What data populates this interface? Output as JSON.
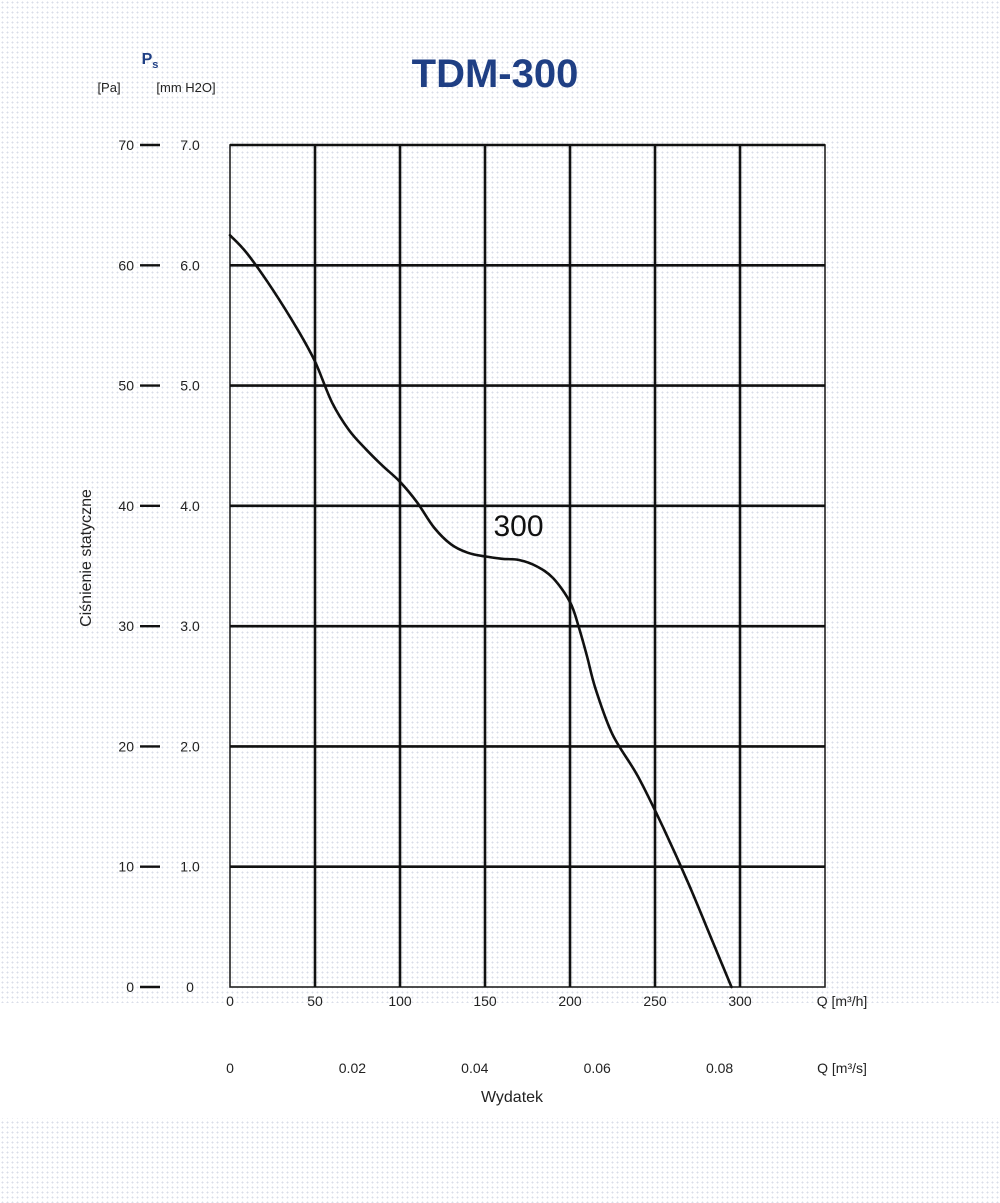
{
  "chart_data": {
    "type": "line",
    "title": "TDM-300",
    "ylabel": "Ciśnienie statyczne",
    "ylabel_symbol": "P",
    "ylabel_subscript": "s",
    "y_unit_pa": "[Pa]",
    "y_unit_mmh2o": "[mm H2O]",
    "xlabel": "Wydatek",
    "x_unit_m3h": "Q [m³/h]",
    "x_unit_m3s": "Q [m³/s]",
    "xlim": [
      0,
      350
    ],
    "ylim": [
      0,
      70
    ],
    "grid": true,
    "x_ticks": [
      0,
      50,
      100,
      150,
      200,
      250,
      300
    ],
    "x_tick_labels": [
      "0",
      "50",
      "100",
      "150",
      "200",
      "250",
      "300"
    ],
    "x2_ticks_m3h": [
      0,
      72,
      144,
      216,
      288
    ],
    "x2_tick_labels": [
      "0",
      "0.02",
      "0.04",
      "0.06",
      "0.08"
    ],
    "y_ticks_pa": [
      0,
      10,
      20,
      30,
      40,
      50,
      60,
      70
    ],
    "y_tick_labels_pa": [
      "0",
      "10",
      "20",
      "30",
      "40",
      "50",
      "60",
      "70"
    ],
    "y_ticks_mm": [
      0,
      1,
      2,
      3,
      4,
      5,
      6,
      7
    ],
    "y_tick_labels_mm": [
      "0",
      "1.0",
      "2.0",
      "3.0",
      "4.0",
      "5.0",
      "6.0",
      "7.0"
    ],
    "series": [
      {
        "name": "300",
        "color": "#111111",
        "x": [
          0,
          10,
          25,
          40,
          50,
          60,
          70,
          80,
          90,
          100,
          110,
          120,
          130,
          140,
          150,
          160,
          170,
          180,
          190,
          200,
          205,
          210,
          215,
          225,
          240,
          255,
          270,
          285,
          295
        ],
        "y": [
          62.5,
          61,
          58,
          54.6,
          52,
          48.6,
          46.3,
          44.7,
          43.3,
          42,
          40.3,
          38.2,
          36.8,
          36.1,
          35.8,
          35.6,
          35.5,
          35,
          34,
          32,
          30,
          27.5,
          24.8,
          21,
          17.5,
          13.2,
          8.5,
          3.4,
          0
        ]
      }
    ]
  }
}
